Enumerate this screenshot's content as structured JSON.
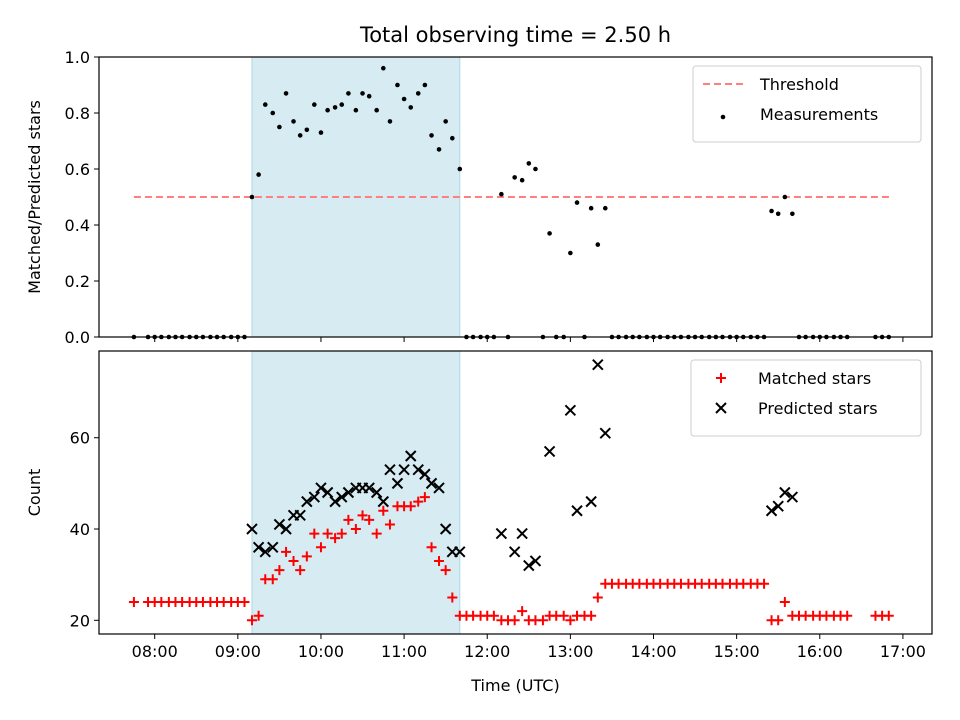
{
  "chart_data": [
    {
      "type": "scatter",
      "title": "Total observing time = 2.50 h",
      "xlabel": "",
      "ylabel": "Matched/Predicted stars",
      "x_unit": "time of day (UTC), decimal hours",
      "xlim": [
        7.33,
        17.35
      ],
      "ylim": [
        0.0,
        1.0
      ],
      "yticks": [
        "0.0",
        "0.2",
        "0.4",
        "0.6",
        "0.8",
        "1.0"
      ],
      "xticks": [
        "08:00",
        "09:00",
        "10:00",
        "11:00",
        "12:00",
        "13:00",
        "14:00",
        "15:00",
        "16:00",
        "17:00"
      ],
      "show_xticklabels": false,
      "grid": false,
      "legend_position": "upper right",
      "highlight_span": {
        "x": [
          9.17,
          11.67
        ],
        "color": "#add8e6"
      },
      "threshold": {
        "name": "Threshold",
        "value": 0.5,
        "x": [
          7.75,
          16.85
        ],
        "color": "#ff7f7f",
        "style": "dashed"
      },
      "series": [
        {
          "name": "Measurements",
          "marker": "dot",
          "color": "#000000",
          "points": [
            [
              7.75,
              0
            ],
            [
              7.92,
              0
            ],
            [
              8.0,
              0
            ],
            [
              8.08,
              0
            ],
            [
              8.17,
              0
            ],
            [
              8.25,
              0
            ],
            [
              8.33,
              0
            ],
            [
              8.42,
              0
            ],
            [
              8.5,
              0
            ],
            [
              8.58,
              0
            ],
            [
              8.67,
              0
            ],
            [
              8.75,
              0
            ],
            [
              8.83,
              0
            ],
            [
              8.92,
              0
            ],
            [
              9.0,
              0
            ],
            [
              9.08,
              0
            ],
            [
              9.17,
              0.5
            ],
            [
              9.25,
              0.58
            ],
            [
              9.33,
              0.83
            ],
            [
              9.42,
              0.8
            ],
            [
              9.5,
              0.75
            ],
            [
              9.58,
              0.87
            ],
            [
              9.67,
              0.77
            ],
            [
              9.75,
              0.72
            ],
            [
              9.83,
              0.74
            ],
            [
              9.92,
              0.83
            ],
            [
              10.0,
              0.73
            ],
            [
              10.08,
              0.81
            ],
            [
              10.17,
              0.82
            ],
            [
              10.25,
              0.83
            ],
            [
              10.33,
              0.87
            ],
            [
              10.42,
              0.81
            ],
            [
              10.5,
              0.87
            ],
            [
              10.58,
              0.86
            ],
            [
              10.67,
              0.81
            ],
            [
              10.75,
              0.96
            ],
            [
              10.83,
              0.77
            ],
            [
              10.92,
              0.9
            ],
            [
              11.0,
              0.85
            ],
            [
              11.08,
              0.82
            ],
            [
              11.17,
              0.87
            ],
            [
              11.25,
              0.9
            ],
            [
              11.33,
              0.72
            ],
            [
              11.42,
              0.67
            ],
            [
              11.5,
              0.77
            ],
            [
              11.58,
              0.71
            ],
            [
              11.67,
              0.6
            ],
            [
              11.75,
              0
            ],
            [
              11.83,
              0
            ],
            [
              11.92,
              0
            ],
            [
              12.0,
              0
            ],
            [
              12.08,
              0
            ],
            [
              12.17,
              0.51
            ],
            [
              12.25,
              0
            ],
            [
              12.33,
              0.57
            ],
            [
              12.42,
              0.56
            ],
            [
              12.5,
              0.62
            ],
            [
              12.58,
              0.6
            ],
            [
              12.67,
              0
            ],
            [
              12.75,
              0.37
            ],
            [
              12.83,
              0
            ],
            [
              12.92,
              0
            ],
            [
              13.0,
              0.3
            ],
            [
              13.08,
              0.48
            ],
            [
              13.17,
              0
            ],
            [
              13.25,
              0.46
            ],
            [
              13.33,
              0.33
            ],
            [
              13.42,
              0.46
            ],
            [
              13.5,
              0
            ],
            [
              13.58,
              0
            ],
            [
              13.67,
              0
            ],
            [
              13.75,
              0
            ],
            [
              13.83,
              0
            ],
            [
              13.92,
              0
            ],
            [
              14.0,
              0
            ],
            [
              14.08,
              0
            ],
            [
              14.17,
              0
            ],
            [
              14.25,
              0
            ],
            [
              14.33,
              0
            ],
            [
              14.42,
              0
            ],
            [
              14.5,
              0
            ],
            [
              14.58,
              0
            ],
            [
              14.67,
              0
            ],
            [
              14.75,
              0
            ],
            [
              14.83,
              0
            ],
            [
              14.92,
              0
            ],
            [
              15.0,
              0
            ],
            [
              15.08,
              0
            ],
            [
              15.17,
              0
            ],
            [
              15.25,
              0
            ],
            [
              15.33,
              0
            ],
            [
              15.42,
              0.45
            ],
            [
              15.5,
              0.44
            ],
            [
              15.58,
              0.5
            ],
            [
              15.67,
              0.44
            ],
            [
              15.75,
              0
            ],
            [
              15.83,
              0
            ],
            [
              15.92,
              0
            ],
            [
              16.0,
              0
            ],
            [
              16.08,
              0
            ],
            [
              16.17,
              0
            ],
            [
              16.25,
              0
            ],
            [
              16.33,
              0
            ],
            [
              16.67,
              0
            ],
            [
              16.75,
              0
            ],
            [
              16.83,
              0
            ]
          ]
        }
      ]
    },
    {
      "type": "scatter",
      "title": "",
      "xlabel": "Time (UTC)",
      "ylabel": "Count",
      "x_unit": "time of day (UTC), decimal hours",
      "xlim": [
        7.33,
        17.35
      ],
      "ylim": [
        17.0,
        79.0
      ],
      "yticks": [
        "20",
        "40",
        "60"
      ],
      "xticks": [
        "08:00",
        "09:00",
        "10:00",
        "11:00",
        "12:00",
        "13:00",
        "14:00",
        "15:00",
        "16:00",
        "17:00"
      ],
      "grid": false,
      "legend_position": "upper right",
      "highlight_span": {
        "x": [
          9.17,
          11.67
        ],
        "color": "#add8e6"
      },
      "series": [
        {
          "name": "Matched stars",
          "marker": "plus",
          "color": "#ff0000",
          "points": [
            [
              7.75,
              24
            ],
            [
              7.92,
              24
            ],
            [
              8.0,
              24
            ],
            [
              8.08,
              24
            ],
            [
              8.17,
              24
            ],
            [
              8.25,
              24
            ],
            [
              8.33,
              24
            ],
            [
              8.42,
              24
            ],
            [
              8.5,
              24
            ],
            [
              8.58,
              24
            ],
            [
              8.67,
              24
            ],
            [
              8.75,
              24
            ],
            [
              8.83,
              24
            ],
            [
              8.92,
              24
            ],
            [
              9.0,
              24
            ],
            [
              9.08,
              24
            ],
            [
              9.17,
              20
            ],
            [
              9.25,
              21
            ],
            [
              9.33,
              29
            ],
            [
              9.42,
              29
            ],
            [
              9.5,
              31
            ],
            [
              9.58,
              35
            ],
            [
              9.67,
              33
            ],
            [
              9.75,
              31
            ],
            [
              9.83,
              34
            ],
            [
              9.92,
              39
            ],
            [
              10.0,
              36
            ],
            [
              10.08,
              39
            ],
            [
              10.17,
              38
            ],
            [
              10.25,
              39
            ],
            [
              10.33,
              42
            ],
            [
              10.42,
              40
            ],
            [
              10.5,
              43
            ],
            [
              10.58,
              42
            ],
            [
              10.67,
              39
            ],
            [
              10.75,
              44
            ],
            [
              10.83,
              41
            ],
            [
              10.92,
              45
            ],
            [
              11.0,
              45
            ],
            [
              11.08,
              45
            ],
            [
              11.17,
              46
            ],
            [
              11.25,
              47
            ],
            [
              11.33,
              36
            ],
            [
              11.42,
              33
            ],
            [
              11.5,
              31
            ],
            [
              11.58,
              25
            ],
            [
              11.67,
              21
            ],
            [
              11.75,
              21
            ],
            [
              11.83,
              21
            ],
            [
              11.92,
              21
            ],
            [
              12.0,
              21
            ],
            [
              12.08,
              21
            ],
            [
              12.17,
              20
            ],
            [
              12.25,
              20
            ],
            [
              12.33,
              20
            ],
            [
              12.42,
              22
            ],
            [
              12.5,
              20
            ],
            [
              12.58,
              20
            ],
            [
              12.67,
              20
            ],
            [
              12.75,
              21
            ],
            [
              12.83,
              21
            ],
            [
              12.92,
              21
            ],
            [
              13.0,
              20
            ],
            [
              13.08,
              21
            ],
            [
              13.17,
              21
            ],
            [
              13.25,
              21
            ],
            [
              13.33,
              25
            ],
            [
              13.42,
              28
            ],
            [
              13.5,
              28
            ],
            [
              13.58,
              28
            ],
            [
              13.67,
              28
            ],
            [
              13.75,
              28
            ],
            [
              13.83,
              28
            ],
            [
              13.92,
              28
            ],
            [
              14.0,
              28
            ],
            [
              14.08,
              28
            ],
            [
              14.17,
              28
            ],
            [
              14.25,
              28
            ],
            [
              14.33,
              28
            ],
            [
              14.42,
              28
            ],
            [
              14.5,
              28
            ],
            [
              14.58,
              28
            ],
            [
              14.67,
              28
            ],
            [
              14.75,
              28
            ],
            [
              14.83,
              28
            ],
            [
              14.92,
              28
            ],
            [
              15.0,
              28
            ],
            [
              15.08,
              28
            ],
            [
              15.17,
              28
            ],
            [
              15.25,
              28
            ],
            [
              15.33,
              28
            ],
            [
              15.42,
              20
            ],
            [
              15.5,
              20
            ],
            [
              15.58,
              24
            ],
            [
              15.67,
              21
            ],
            [
              15.75,
              21
            ],
            [
              15.83,
              21
            ],
            [
              15.92,
              21
            ],
            [
              16.0,
              21
            ],
            [
              16.08,
              21
            ],
            [
              16.17,
              21
            ],
            [
              16.25,
              21
            ],
            [
              16.33,
              21
            ],
            [
              16.67,
              21
            ],
            [
              16.75,
              21
            ],
            [
              16.83,
              21
            ]
          ]
        },
        {
          "name": "Predicted stars",
          "marker": "x",
          "color": "#000000",
          "points": [
            [
              9.17,
              40
            ],
            [
              9.25,
              36
            ],
            [
              9.33,
              35
            ],
            [
              9.42,
              36
            ],
            [
              9.5,
              41
            ],
            [
              9.58,
              40
            ],
            [
              9.67,
              43
            ],
            [
              9.75,
              43
            ],
            [
              9.83,
              46
            ],
            [
              9.92,
              47
            ],
            [
              10.0,
              49
            ],
            [
              10.08,
              48
            ],
            [
              10.17,
              46
            ],
            [
              10.25,
              47
            ],
            [
              10.33,
              48
            ],
            [
              10.42,
              49
            ],
            [
              10.5,
              49
            ],
            [
              10.58,
              49
            ],
            [
              10.67,
              48
            ],
            [
              10.75,
              46
            ],
            [
              10.83,
              53
            ],
            [
              10.92,
              50
            ],
            [
              11.0,
              53
            ],
            [
              11.08,
              56
            ],
            [
              11.17,
              53
            ],
            [
              11.25,
              52
            ],
            [
              11.33,
              50
            ],
            [
              11.42,
              49
            ],
            [
              11.5,
              40
            ],
            [
              11.58,
              35
            ],
            [
              11.67,
              35
            ],
            [
              12.17,
              39
            ],
            [
              12.33,
              35
            ],
            [
              12.42,
              39
            ],
            [
              12.5,
              32
            ],
            [
              12.58,
              33
            ],
            [
              12.75,
              57
            ],
            [
              13.0,
              66
            ],
            [
              13.08,
              44
            ],
            [
              13.25,
              46
            ],
            [
              13.33,
              76
            ],
            [
              13.42,
              61
            ],
            [
              15.42,
              44
            ],
            [
              15.5,
              45
            ],
            [
              15.58,
              48
            ],
            [
              15.67,
              47
            ]
          ]
        }
      ]
    }
  ]
}
